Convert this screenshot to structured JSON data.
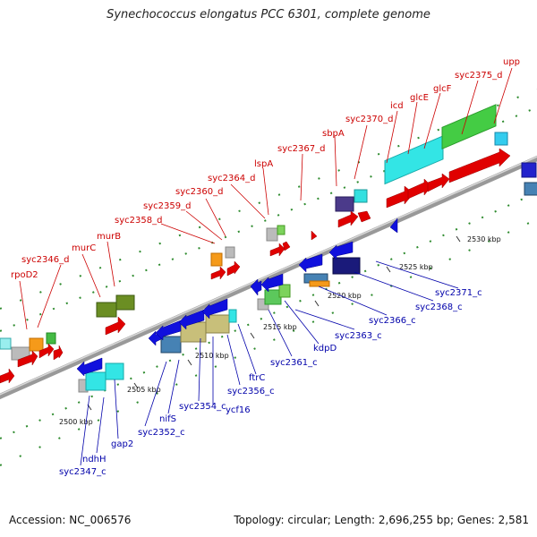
{
  "title": "Synechococcus elongatus PCC 6301, complete genome",
  "footer": {
    "accession": "Accession: NC_006576",
    "topology": "Topology: circular; Length: 2,696,255 bp; Genes: 2,581"
  },
  "colors": {
    "forward": "#cc0000",
    "reverse": "#0000aa",
    "backbone": "#808080",
    "tick": "#228b22"
  },
  "ticks": [
    "2500 kbp",
    "2505 kbp",
    "2510 kbp",
    "2515 kbp",
    "2520 kbp",
    "2525 kbp",
    "2530 kbp"
  ],
  "top_labels": [
    "rpoD2",
    "syc2346_d",
    "murC",
    "murB",
    "syc2358_d",
    "syc2359_d",
    "syc2360_d",
    "syc2364_d",
    "lspA",
    "syc2367_d",
    "sbpA",
    "syc2370_d",
    "icd",
    "glcE",
    "glcF",
    "syc2375_d",
    "upp"
  ],
  "bottom_labels": [
    "syc2347_c",
    "ndhH",
    "gap2",
    "syc2352_c",
    "nifS",
    "syc2354_c",
    "ycf16",
    "syc2356_c",
    "ftrC",
    "syc2361_c",
    "kdpD",
    "syc2363_c",
    "syc2366_c",
    "syc2368_c",
    "syc2371_c"
  ]
}
